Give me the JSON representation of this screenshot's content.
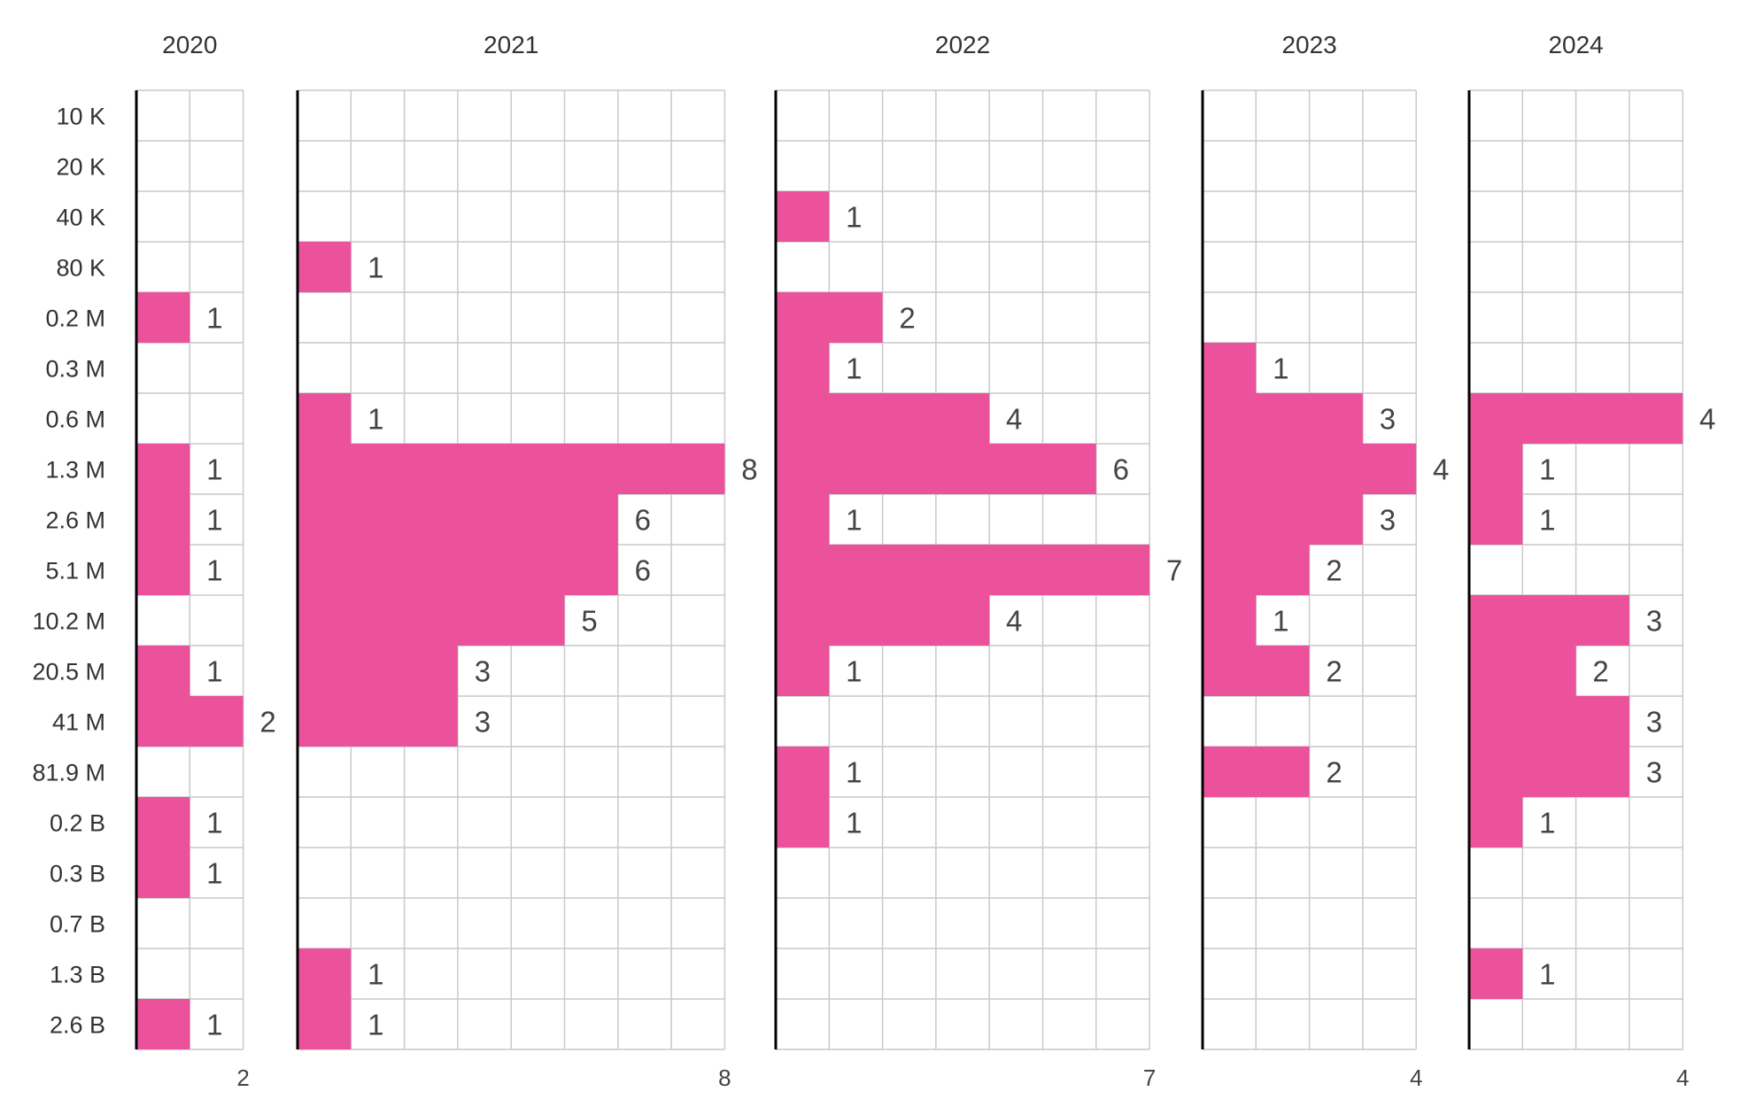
{
  "chart_data": {
    "type": "bar",
    "orientation": "horizontal",
    "layout": "small-multiples",
    "bar_color": "#EB529B",
    "grid": true,
    "categories": [
      "10 K",
      "20 K",
      "40 K",
      "80 K",
      "0.2 M",
      "0.3 M",
      "0.6 M",
      "1.3 M",
      "2.6 M",
      "5.1 M",
      "10.2 M",
      "20.5 M",
      "41 M",
      "81.9 M",
      "0.2 B",
      "0.3 B",
      "0.7 B",
      "1.3 B",
      "2.6 B"
    ],
    "panels": [
      {
        "name": "2020",
        "max": 2,
        "values": [
          0,
          0,
          0,
          0,
          1,
          0,
          0,
          1,
          1,
          1,
          0,
          1,
          2,
          0,
          1,
          1,
          0,
          0,
          1
        ]
      },
      {
        "name": "2021",
        "max": 8,
        "values": [
          0,
          0,
          0,
          1,
          0,
          0,
          1,
          8,
          6,
          6,
          5,
          3,
          3,
          0,
          0,
          0,
          0,
          1,
          1
        ]
      },
      {
        "name": "2022",
        "max": 7,
        "values": [
          0,
          0,
          1,
          0,
          2,
          1,
          4,
          6,
          1,
          7,
          4,
          1,
          0,
          1,
          1,
          0,
          0,
          0,
          0
        ]
      },
      {
        "name": "2023",
        "max": 4,
        "values": [
          0,
          0,
          0,
          0,
          0,
          1,
          3,
          4,
          3,
          2,
          1,
          2,
          0,
          2,
          0,
          0,
          0,
          0,
          0
        ]
      },
      {
        "name": "2024",
        "max": 4,
        "values": [
          0,
          0,
          0,
          0,
          0,
          0,
          4,
          1,
          1,
          0,
          3,
          2,
          3,
          3,
          1,
          0,
          0,
          1,
          0
        ]
      }
    ]
  }
}
